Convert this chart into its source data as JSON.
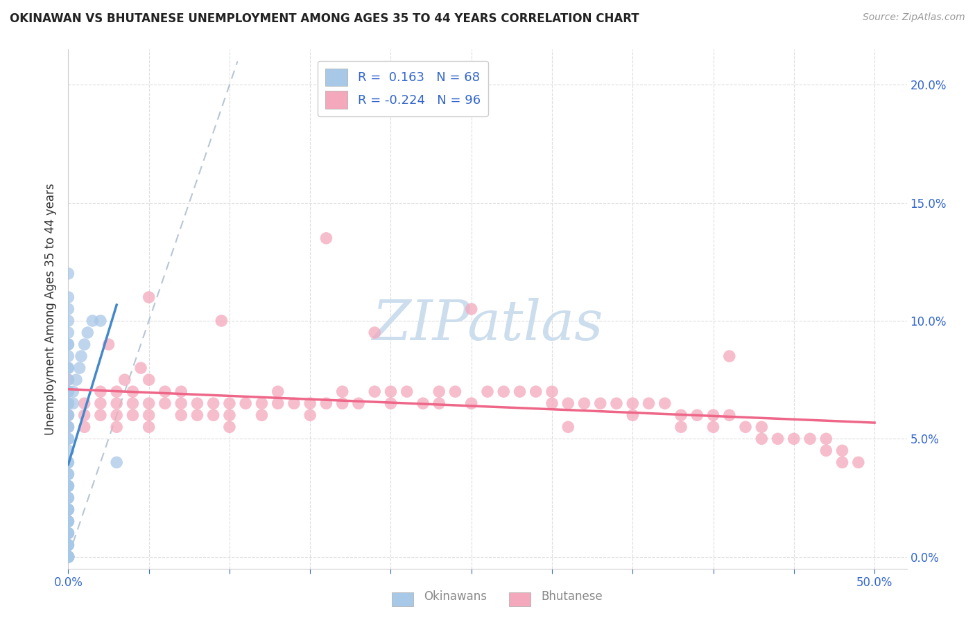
{
  "title": "OKINAWAN VS BHUTANESE UNEMPLOYMENT AMONG AGES 35 TO 44 YEARS CORRELATION CHART",
  "source": "Source: ZipAtlas.com",
  "ylabel": "Unemployment Among Ages 35 to 44 years",
  "xlim": [
    0.0,
    0.52
  ],
  "ylim": [
    -0.005,
    0.215
  ],
  "x_ticks_shown": [
    0.0,
    0.5
  ],
  "x_tick_labels_shown": [
    "0.0%",
    "50.0%"
  ],
  "x_ticks_grid": [
    0.0,
    0.05,
    0.1,
    0.15,
    0.2,
    0.25,
    0.3,
    0.35,
    0.4,
    0.45,
    0.5
  ],
  "y_ticks_right": [
    0.0,
    0.05,
    0.1,
    0.15,
    0.2
  ],
  "y_tick_labels_right": [
    "0.0%",
    "5.0%",
    "10.0%",
    "15.0%",
    "20.0%"
  ],
  "legend_r_okinawan": " 0.163",
  "legend_n_okinawan": "68",
  "legend_r_bhutanese": "-0.224",
  "legend_n_bhutanese": "96",
  "okinawan_color": "#a8c8e8",
  "bhutanese_color": "#f4a8bc",
  "okinawan_line_color": "#4488cc",
  "bhutanese_line_color": "#ee6688",
  "diagonal_line_color": "#aabcce",
  "watermark_text": "ZIPatlas",
  "watermark_color": "#ccdded",
  "background_color": "#ffffff",
  "figsize": [
    14.06,
    8.92
  ],
  "dpi": 100,
  "ok_x": [
    0.0,
    0.0,
    0.0,
    0.0,
    0.0,
    0.0,
    0.0,
    0.0,
    0.0,
    0.0,
    0.0,
    0.0,
    0.0,
    0.0,
    0.0,
    0.0,
    0.0,
    0.0,
    0.0,
    0.0,
    0.0,
    0.0,
    0.0,
    0.0,
    0.0,
    0.0,
    0.0,
    0.0,
    0.0,
    0.0,
    0.0,
    0.0,
    0.0,
    0.0,
    0.0,
    0.0,
    0.0,
    0.0,
    0.0,
    0.0,
    0.0,
    0.0,
    0.0,
    0.0,
    0.0,
    0.0,
    0.0,
    0.0,
    0.0,
    0.0,
    0.0,
    0.0,
    0.0,
    0.0,
    0.0,
    0.0,
    0.0,
    0.0,
    0.003,
    0.003,
    0.005,
    0.007,
    0.008,
    0.01,
    0.012,
    0.015,
    0.02,
    0.03
  ],
  "ok_y": [
    0.0,
    0.0,
    0.0,
    0.0,
    0.0,
    0.0,
    0.005,
    0.005,
    0.005,
    0.01,
    0.01,
    0.01,
    0.015,
    0.015,
    0.015,
    0.02,
    0.02,
    0.02,
    0.025,
    0.025,
    0.03,
    0.03,
    0.03,
    0.035,
    0.035,
    0.04,
    0.04,
    0.045,
    0.05,
    0.05,
    0.055,
    0.055,
    0.06,
    0.06,
    0.065,
    0.065,
    0.07,
    0.07,
    0.075,
    0.08,
    0.08,
    0.085,
    0.09,
    0.09,
    0.095,
    0.1,
    0.105,
    0.11,
    0.12,
    0.0,
    0.0,
    0.0,
    0.0,
    0.0,
    0.0,
    0.0,
    0.0,
    0.0,
    0.065,
    0.07,
    0.075,
    0.08,
    0.085,
    0.09,
    0.095,
    0.1,
    0.1,
    0.04
  ],
  "bh_x": [
    0.0,
    0.0,
    0.0,
    0.0,
    0.0,
    0.01,
    0.01,
    0.01,
    0.02,
    0.02,
    0.02,
    0.03,
    0.03,
    0.03,
    0.03,
    0.04,
    0.04,
    0.04,
    0.05,
    0.05,
    0.05,
    0.05,
    0.06,
    0.06,
    0.07,
    0.07,
    0.07,
    0.08,
    0.08,
    0.09,
    0.09,
    0.1,
    0.1,
    0.1,
    0.11,
    0.12,
    0.12,
    0.13,
    0.13,
    0.14,
    0.15,
    0.15,
    0.16,
    0.17,
    0.17,
    0.18,
    0.19,
    0.2,
    0.2,
    0.21,
    0.22,
    0.23,
    0.23,
    0.24,
    0.25,
    0.26,
    0.27,
    0.28,
    0.29,
    0.3,
    0.3,
    0.31,
    0.32,
    0.33,
    0.34,
    0.35,
    0.35,
    0.36,
    0.37,
    0.38,
    0.38,
    0.39,
    0.4,
    0.4,
    0.41,
    0.42,
    0.43,
    0.43,
    0.44,
    0.45,
    0.46,
    0.47,
    0.47,
    0.48,
    0.48,
    0.49,
    0.25,
    0.16,
    0.095,
    0.05,
    0.025,
    0.035,
    0.045,
    0.19,
    0.31,
    0.41
  ],
  "bh_y": [
    0.055,
    0.06,
    0.065,
    0.07,
    0.075,
    0.055,
    0.06,
    0.065,
    0.06,
    0.065,
    0.07,
    0.055,
    0.06,
    0.065,
    0.07,
    0.06,
    0.065,
    0.07,
    0.055,
    0.06,
    0.065,
    0.075,
    0.065,
    0.07,
    0.06,
    0.065,
    0.07,
    0.06,
    0.065,
    0.06,
    0.065,
    0.055,
    0.06,
    0.065,
    0.065,
    0.06,
    0.065,
    0.065,
    0.07,
    0.065,
    0.06,
    0.065,
    0.065,
    0.065,
    0.07,
    0.065,
    0.07,
    0.065,
    0.07,
    0.07,
    0.065,
    0.065,
    0.07,
    0.07,
    0.065,
    0.07,
    0.07,
    0.07,
    0.07,
    0.065,
    0.07,
    0.065,
    0.065,
    0.065,
    0.065,
    0.06,
    0.065,
    0.065,
    0.065,
    0.055,
    0.06,
    0.06,
    0.055,
    0.06,
    0.06,
    0.055,
    0.05,
    0.055,
    0.05,
    0.05,
    0.05,
    0.045,
    0.05,
    0.04,
    0.045,
    0.04,
    0.105,
    0.135,
    0.1,
    0.11,
    0.09,
    0.075,
    0.08,
    0.095,
    0.055,
    0.085
  ]
}
